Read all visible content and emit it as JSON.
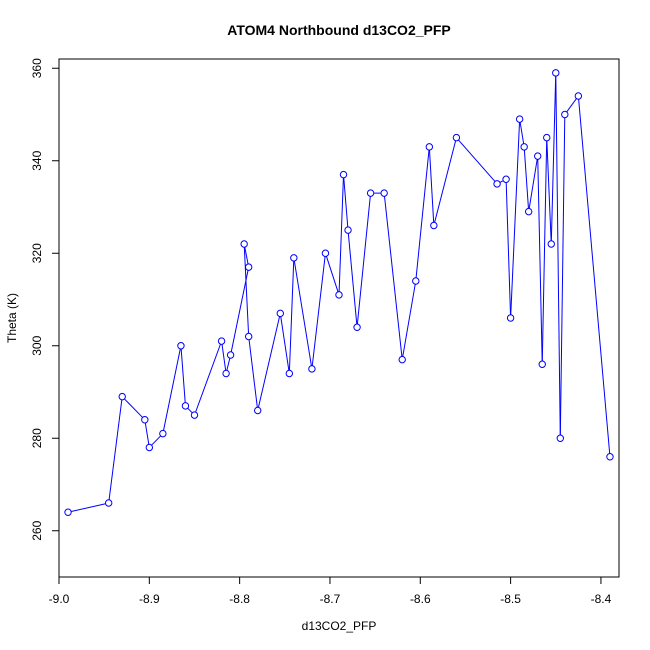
{
  "chart_data": {
    "type": "line",
    "title": "ATOM4 Northbound d13CO2_PFP",
    "xlabel": "d13CO2_PFP",
    "ylabel": "Theta (K)",
    "xlim": [
      -9.0,
      -8.38
    ],
    "ylim": [
      250,
      362
    ],
    "xticks": [
      -9.0,
      -8.9,
      -8.8,
      -8.7,
      -8.6,
      -8.5,
      -8.4
    ],
    "xtick_labels": [
      "-9.0",
      "-8.9",
      "-8.8",
      "-8.7",
      "-8.6",
      "-8.5",
      "-8.4"
    ],
    "yticks": [
      260,
      280,
      300,
      320,
      340,
      360
    ],
    "ytick_labels": [
      "260",
      "280",
      "300",
      "320",
      "340",
      "360"
    ],
    "grid": false,
    "color": "#0000ff",
    "marker": "open-circle",
    "series": [
      {
        "x": [
          -8.99,
          -8.945,
          -8.93,
          -8.905,
          -8.9,
          -8.885,
          -8.865,
          -8.86,
          -8.85,
          -8.82,
          -8.815,
          -8.81,
          -8.79,
          -8.795,
          -8.79,
          -8.78,
          -8.755,
          -8.745,
          -8.74,
          -8.72,
          -8.705,
          -8.69,
          -8.685,
          -8.68,
          -8.67,
          -8.655,
          -8.64,
          -8.62,
          -8.605,
          -8.59,
          -8.585,
          -8.56,
          -8.515,
          -8.505,
          -8.5,
          -8.49,
          -8.485,
          -8.48,
          -8.47,
          -8.465,
          -8.46,
          -8.455,
          -8.45,
          -8.445,
          -8.44,
          -8.425,
          -8.39
        ],
        "y": [
          264,
          266,
          289,
          284,
          278,
          281,
          300,
          287,
          285,
          301,
          294,
          298,
          317,
          322,
          302,
          286,
          307,
          294,
          319,
          295,
          320,
          311,
          337,
          325,
          304,
          333,
          333,
          297,
          314,
          343,
          326,
          345,
          335,
          336,
          306,
          349,
          343,
          329,
          341,
          296,
          345,
          322,
          359,
          280,
          350,
          354,
          276
        ]
      }
    ]
  }
}
